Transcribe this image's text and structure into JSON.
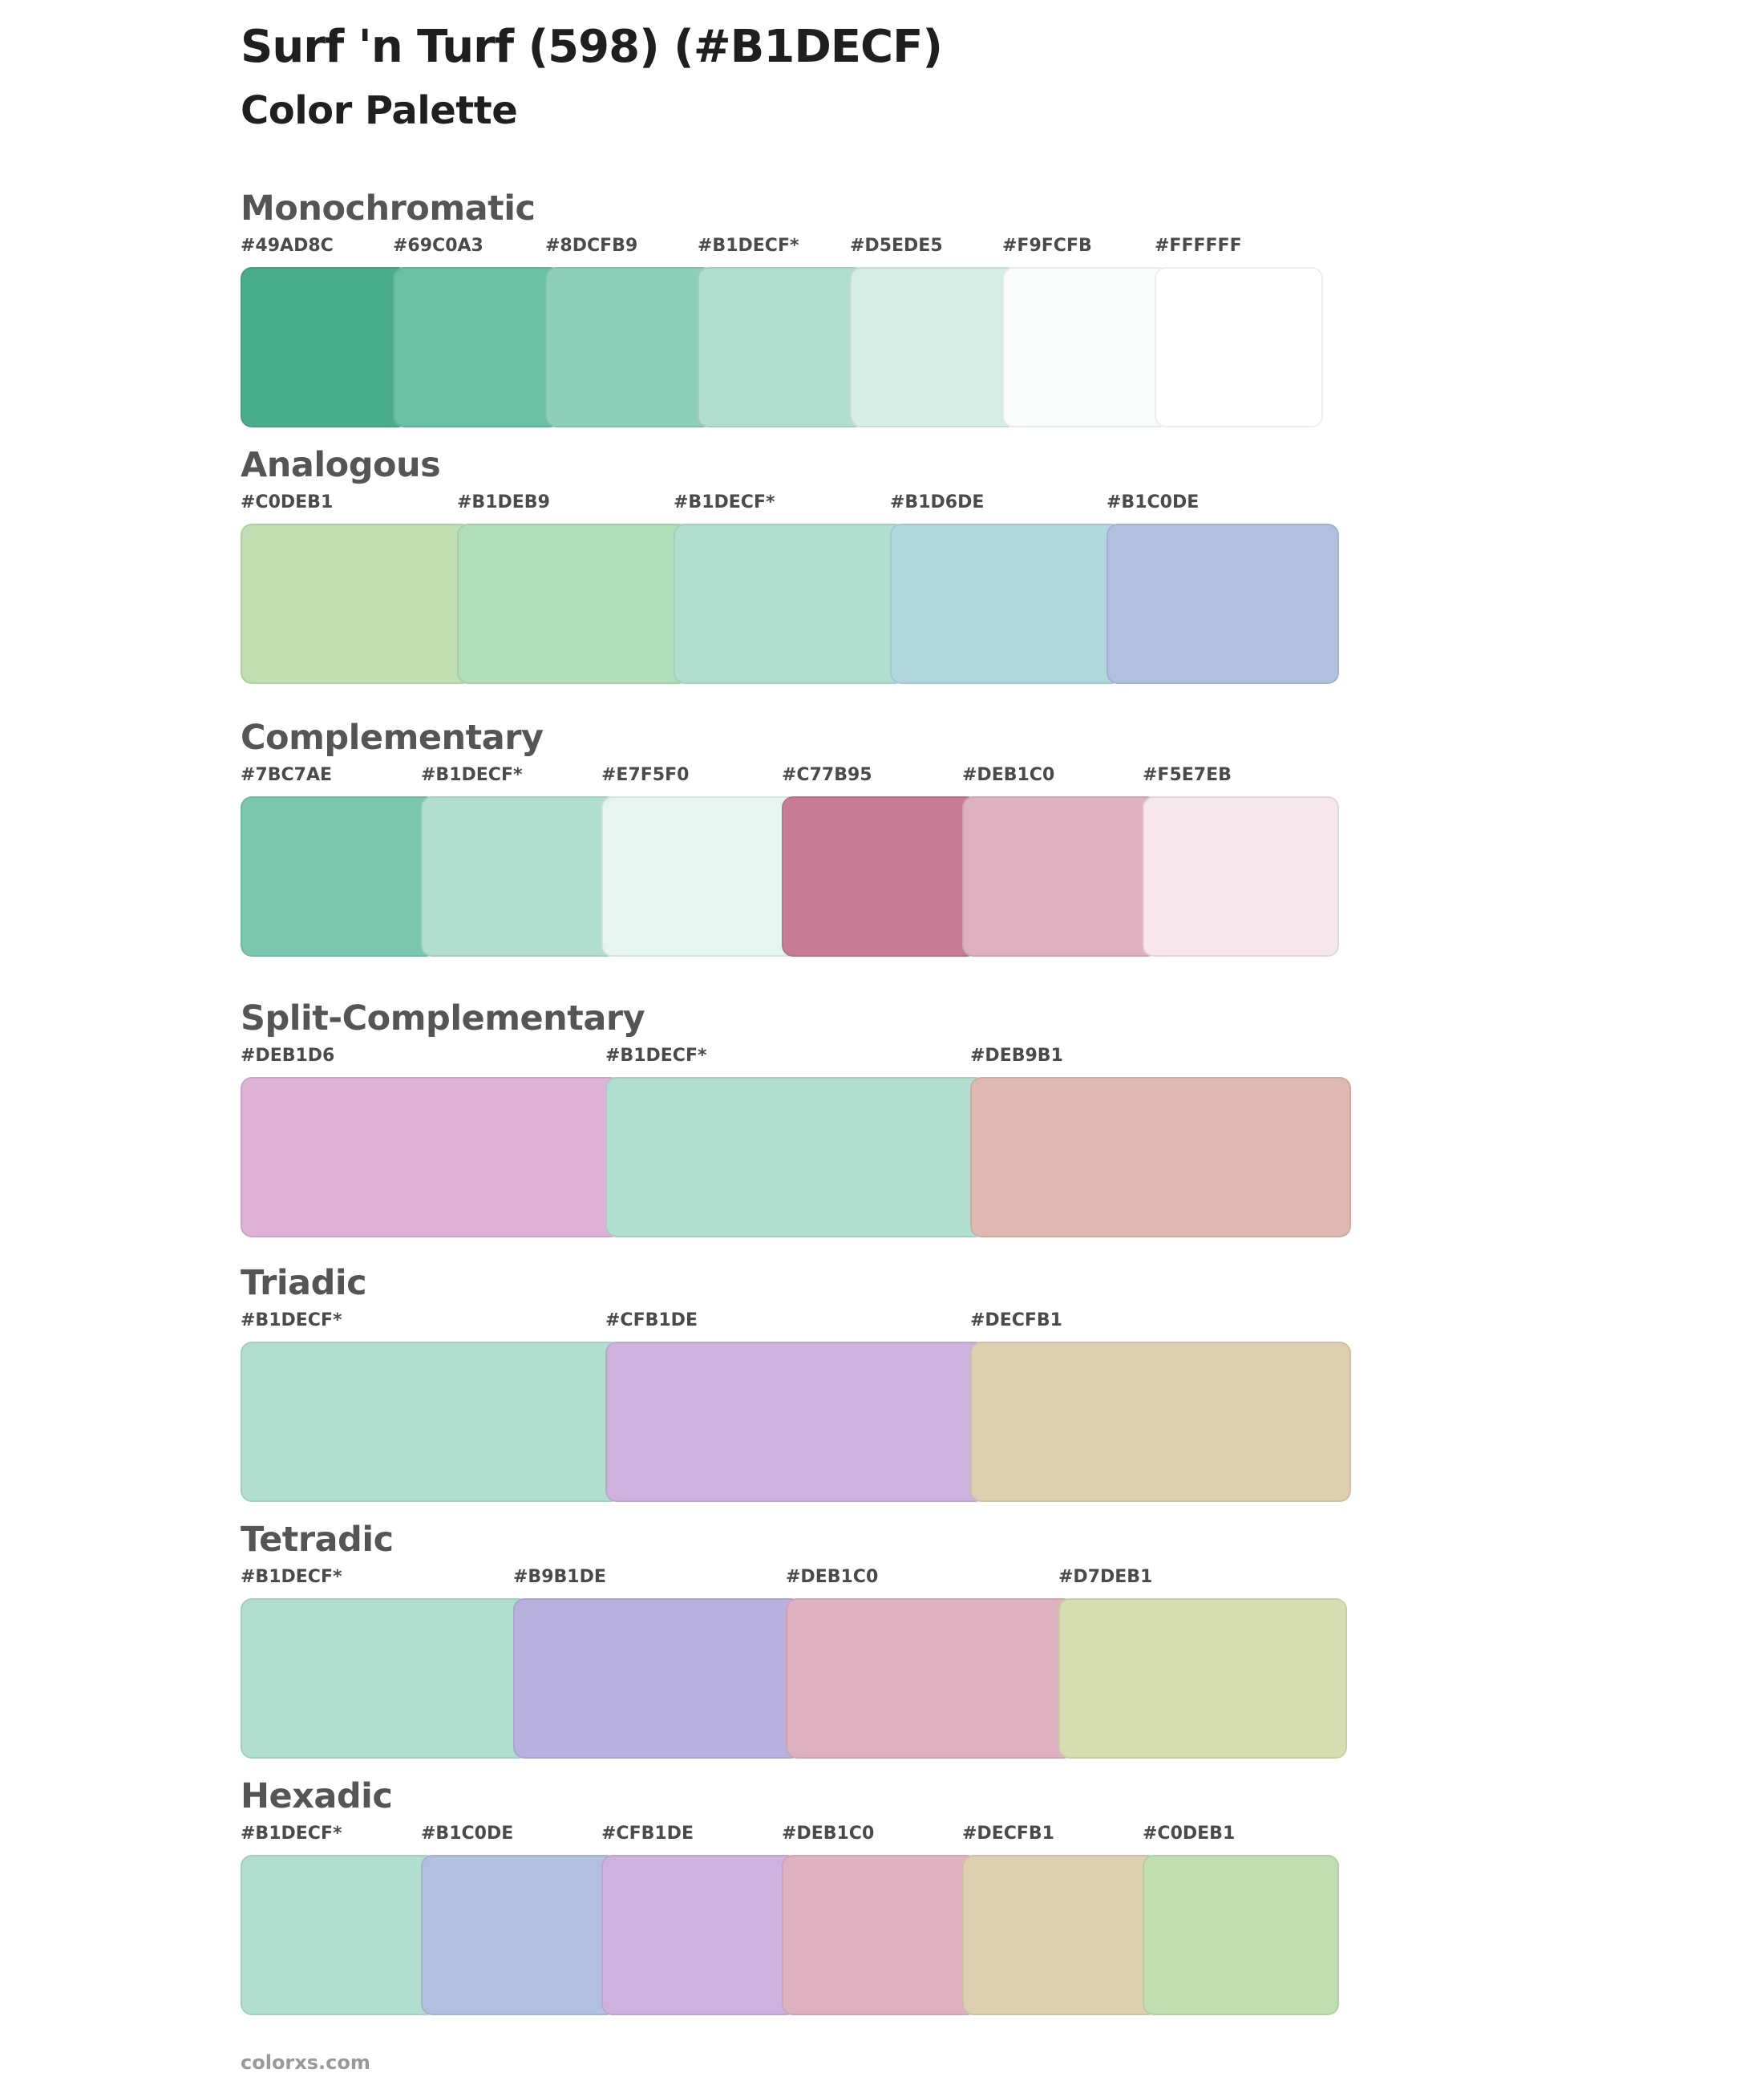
{
  "page": {
    "title": "Surf 'n Turf (598) (#B1DECF)",
    "subtitle": "Color Palette",
    "footer": "colorxs.com"
  },
  "sections": [
    {
      "name": "Monochromatic",
      "swatches": [
        {
          "label": "#49AD8C",
          "color": "#49AD8C"
        },
        {
          "label": "#69C0A3",
          "color": "#69C0A3"
        },
        {
          "label": "#8DCFB9",
          "color": "#8DCFB9"
        },
        {
          "label": "#B1DECF*",
          "color": "#B1DECF"
        },
        {
          "label": "#D5EDE5",
          "color": "#D5EDE5"
        },
        {
          "label": "#F9FCFB",
          "color": "#F9FCFB"
        },
        {
          "label": "#FFFFFF",
          "color": "#FFFFFF"
        }
      ]
    },
    {
      "name": "Analogous",
      "swatches": [
        {
          "label": "#C0DEB1",
          "color": "#C0DEB1"
        },
        {
          "label": "#B1DEB9",
          "color": "#B1DEB9"
        },
        {
          "label": "#B1DECF*",
          "color": "#B1DECF"
        },
        {
          "label": "#B1D6DE",
          "color": "#B1D6DE"
        },
        {
          "label": "#B1C0DE",
          "color": "#B1C0DE"
        }
      ]
    },
    {
      "name": "Complementary",
      "swatches": [
        {
          "label": "#7BC7AE",
          "color": "#7BC7AE"
        },
        {
          "label": "#B1DECF*",
          "color": "#B1DECF"
        },
        {
          "label": "#E7F5F0",
          "color": "#E7F5F0"
        },
        {
          "label": "#C77B95",
          "color": "#C77B95"
        },
        {
          "label": "#DEB1C0",
          "color": "#DEB1C0"
        },
        {
          "label": "#F5E7EB",
          "color": "#F5E7EB"
        }
      ]
    },
    {
      "name": "Split-Complementary",
      "swatches": [
        {
          "label": "#DEB1D6",
          "color": "#DEB1D6"
        },
        {
          "label": "#B1DECF*",
          "color": "#B1DECF"
        },
        {
          "label": "#DEB9B1",
          "color": "#DEB9B1"
        }
      ]
    },
    {
      "name": "Triadic",
      "swatches": [
        {
          "label": "#B1DECF*",
          "color": "#B1DECF"
        },
        {
          "label": "#CFB1DE",
          "color": "#CFB1DE"
        },
        {
          "label": "#DECFB1",
          "color": "#DECFB1"
        }
      ]
    },
    {
      "name": "Tetradic",
      "swatches": [
        {
          "label": "#B1DECF*",
          "color": "#B1DECF"
        },
        {
          "label": "#B9B1DE",
          "color": "#B9B1DE"
        },
        {
          "label": "#DEB1C0",
          "color": "#DEB1C0"
        },
        {
          "label": "#D7DEB1",
          "color": "#D7DEB1"
        }
      ]
    },
    {
      "name": "Hexadic",
      "swatches": [
        {
          "label": "#B1DECF*",
          "color": "#B1DECF"
        },
        {
          "label": "#B1C0DE",
          "color": "#B1C0DE"
        },
        {
          "label": "#CFB1DE",
          "color": "#CFB1DE"
        },
        {
          "label": "#DEB1C0",
          "color": "#DEB1C0"
        },
        {
          "label": "#DECFB1",
          "color": "#DECFB1"
        },
        {
          "label": "#C0DEB1",
          "color": "#C0DEB1"
        }
      ]
    }
  ]
}
